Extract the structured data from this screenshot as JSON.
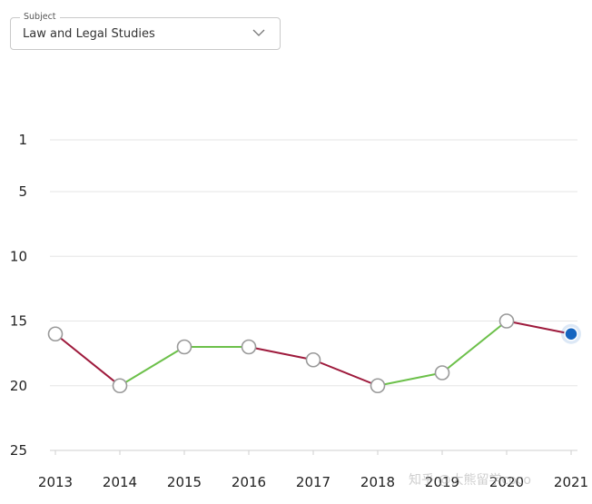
{
  "subject_select": {
    "legend": "Subject",
    "value": "Law and Legal Studies",
    "chevron_icon": "chevron-down-icon"
  },
  "watermark": "知乎 @大熊留学coco",
  "chart_data": {
    "type": "line",
    "title": "",
    "xlabel": "",
    "ylabel": "",
    "x": [
      "2013",
      "2014",
      "2015",
      "2016",
      "2017",
      "2018",
      "2019",
      "2020",
      "2021"
    ],
    "values": [
      16,
      20,
      17,
      17,
      18,
      20,
      19,
      15,
      16
    ],
    "y_ticks": [
      1,
      5,
      10,
      15,
      20,
      25
    ],
    "ylim": [
      25,
      1
    ],
    "y_inverted": true,
    "grid": true,
    "colors": {
      "up": "#6cc04a",
      "down": "#9e1a3c",
      "point_fill": "#ffffff",
      "point_stroke": "#999999",
      "current_point": "#1565c0",
      "grid": "#e6e6e6"
    }
  }
}
